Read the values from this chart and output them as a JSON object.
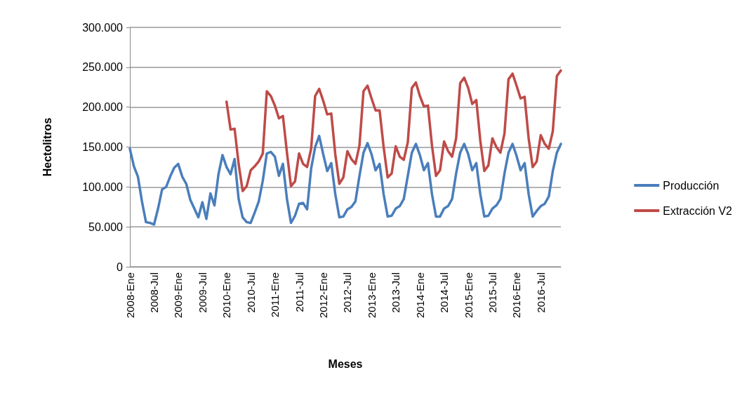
{
  "chart_data": {
    "type": "line",
    "xlabel": "Meses",
    "ylabel": "Hectolitros",
    "categories": [
      "2008-Ene",
      null,
      null,
      null,
      null,
      null,
      "2008-Jul",
      null,
      null,
      null,
      null,
      null,
      "2009-Ene",
      null,
      null,
      null,
      null,
      null,
      "2009-Jul",
      null,
      null,
      null,
      null,
      null,
      "2010-Ene",
      null,
      null,
      null,
      null,
      null,
      "2010-Jul",
      null,
      null,
      null,
      null,
      null,
      "2011-Ene",
      null,
      null,
      null,
      null,
      null,
      "2011-Jul",
      null,
      null,
      null,
      null,
      null,
      "2012-Ene",
      null,
      null,
      null,
      null,
      null,
      "2012-Jul",
      null,
      null,
      null,
      null,
      null,
      "2013-Ene",
      null,
      null,
      null,
      null,
      null,
      "2013-Jul",
      null,
      null,
      null,
      null,
      null,
      "2014-Ene",
      null,
      null,
      null,
      null,
      null,
      "2014-Jul",
      null,
      null,
      null,
      null,
      null,
      "2015-Ene",
      null,
      null,
      null,
      null,
      null,
      "2015-Jul",
      null,
      null,
      null,
      null,
      null,
      "2016-Ene",
      null,
      null,
      null,
      null,
      null,
      "2016-Jul",
      null,
      null,
      null,
      null,
      null
    ],
    "series": [
      {
        "name": "Producción",
        "color": "#4a7ebb",
        "values": [
          148000,
          126000,
          113000,
          82000,
          56000,
          55000,
          53000,
          73000,
          97000,
          100000,
          113000,
          124000,
          129000,
          113000,
          104000,
          84000,
          73000,
          62000,
          81000,
          60000,
          92000,
          77000,
          116000,
          140000,
          125000,
          116000,
          135000,
          85000,
          62000,
          56000,
          55000,
          68000,
          82000,
          108000,
          142000,
          144000,
          138000,
          114000,
          129000,
          85000,
          55000,
          64000,
          79000,
          80000,
          72000,
          123000,
          150000,
          164000,
          141000,
          120000,
          130000,
          91000,
          62000,
          63000,
          72000,
          75000,
          82000,
          114000,
          143000,
          155000,
          141000,
          121000,
          129000,
          91000,
          63000,
          64000,
          73000,
          76000,
          85000,
          114000,
          143000,
          154000,
          140000,
          121000,
          130000,
          91000,
          63000,
          63000,
          73000,
          76000,
          85000,
          117000,
          143000,
          154000,
          141000,
          121000,
          130000,
          91000,
          63000,
          64000,
          73000,
          77000,
          85000,
          117000,
          143000,
          154000,
          139000,
          121000,
          130000,
          91000,
          63000,
          70000,
          76000,
          79000,
          88000,
          120000,
          143000,
          154000
        ]
      },
      {
        "name": "Extracción V2",
        "color": "#be4b48",
        "values": [
          null,
          null,
          null,
          null,
          null,
          null,
          null,
          null,
          null,
          null,
          null,
          null,
          null,
          null,
          null,
          null,
          null,
          null,
          null,
          null,
          null,
          null,
          null,
          null,
          207000,
          172000,
          173000,
          129000,
          95000,
          101000,
          121000,
          126000,
          132000,
          142000,
          220000,
          214000,
          202000,
          186000,
          189000,
          143000,
          101000,
          107000,
          142000,
          129000,
          125000,
          148000,
          214000,
          223000,
          208000,
          191000,
          192000,
          141000,
          104000,
          112000,
          145000,
          135000,
          129000,
          152000,
          220000,
          227000,
          211000,
          196000,
          196000,
          150000,
          112000,
          117000,
          151000,
          138000,
          134000,
          156000,
          224000,
          231000,
          214000,
          201000,
          202000,
          152000,
          114000,
          121000,
          157000,
          145000,
          138000,
          161000,
          230000,
          237000,
          224000,
          204000,
          209000,
          158000,
          120000,
          127000,
          161000,
          150000,
          143000,
          167000,
          235000,
          242000,
          227000,
          211000,
          213000,
          161000,
          125000,
          132000,
          165000,
          154000,
          148000,
          170000,
          239000,
          246000
        ]
      }
    ],
    "ylim": [
      0,
      300000
    ],
    "yticks": [
      0,
      {
        "value": 50000,
        "label": "50.000"
      },
      {
        "value": 100000,
        "label": "100.000"
      },
      {
        "value": 150000,
        "label": "150.000"
      },
      {
        "value": 200000,
        "label": "200.000"
      },
      {
        "value": 250000,
        "label": "250.000"
      },
      {
        "value": 300000,
        "label": "300.000"
      }
    ],
    "grid": "y",
    "legend": "right",
    "marker": "none",
    "line_style": "solid"
  }
}
